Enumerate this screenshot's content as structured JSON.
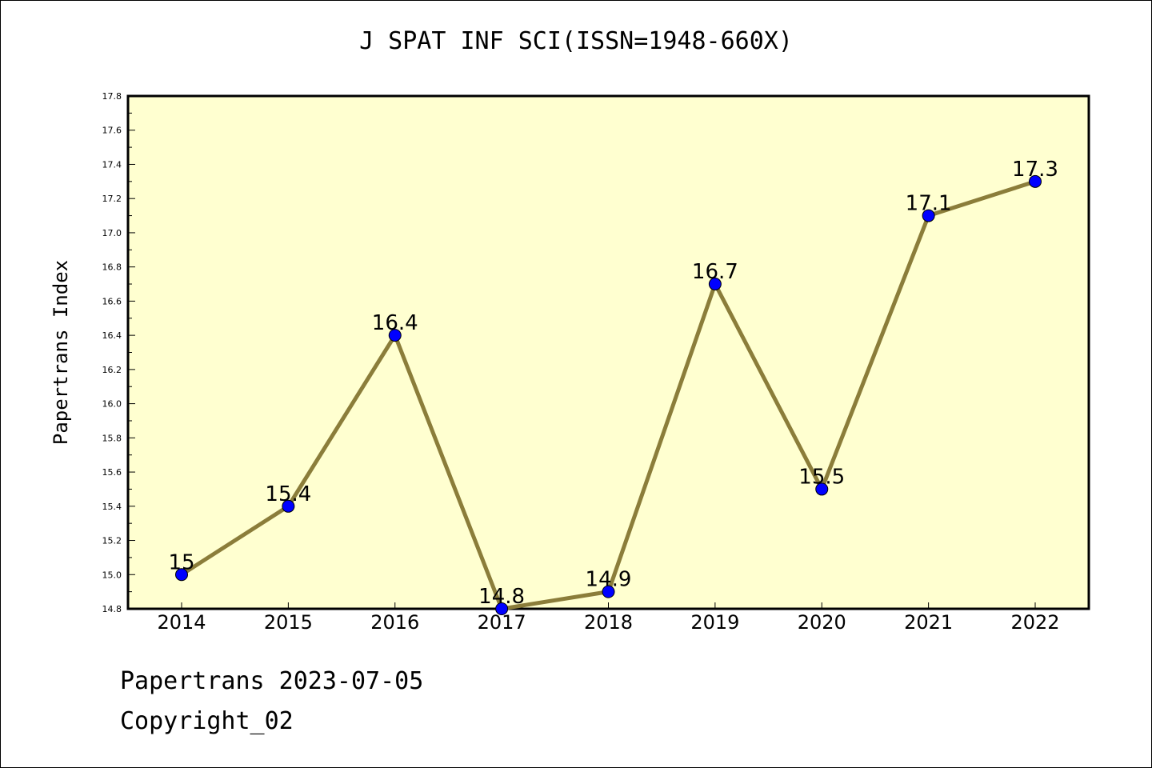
{
  "chart_data": {
    "type": "line",
    "title": "J SPAT INF SCI(ISSN=1948-660X)",
    "xlabel": "",
    "ylabel": "Papertrans Index",
    "categories": [
      "2014",
      "2015",
      "2016",
      "2017",
      "2018",
      "2019",
      "2020",
      "2021",
      "2022"
    ],
    "series": [
      {
        "values": [
          15,
          15.4,
          16.4,
          14.8,
          14.9,
          16.7,
          15.5,
          17.1,
          17.3
        ],
        "data_labels": [
          "15",
          "15.4",
          "16.4",
          "14.8",
          "14.9",
          "16.7",
          "15.5",
          "17.1",
          "17.3"
        ],
        "line_color": "#8b7d3a",
        "marker_color": "#0000ff"
      }
    ],
    "ylim": [
      14.8,
      17.8
    ],
    "yticks": [
      "14.8",
      "15.0",
      "15.2",
      "15.4",
      "15.6",
      "15.8",
      "16.0",
      "16.2",
      "16.4",
      "16.6",
      "16.8",
      "17.0",
      "17.2",
      "17.4",
      "17.6",
      "17.8"
    ],
    "plot_background": "#ffffd0",
    "grid": false
  },
  "footer": {
    "line1": "Papertrans 2023-07-05",
    "line2": "Copyright_02"
  }
}
